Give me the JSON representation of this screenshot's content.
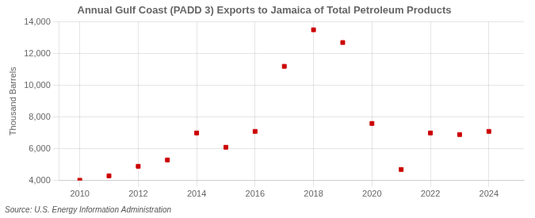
{
  "chart_data": {
    "type": "scatter",
    "title": "Annual Gulf Coast (PADD 3) Exports to Jamaica of Total Petroleum Products",
    "y_label": "Thousand Barrels",
    "annotations": [
      "Source: U.S. Energy Information Administration"
    ],
    "x": [
      2010,
      2011,
      2012,
      2013,
      2014,
      2015,
      2016,
      2017,
      2018,
      2019,
      2020,
      2021,
      2022,
      2023,
      2024
    ],
    "values": [
      4020,
      4300,
      4900,
      5300,
      7000,
      6100,
      7100,
      11200,
      13500,
      12700,
      7600,
      4700,
      7000,
      6900,
      7100
    ],
    "color": "#cc0000",
    "marker": "square",
    "xlim": [
      2009.3,
      2025.2
    ],
    "xticks": [
      2010,
      2012,
      2014,
      2016,
      2018,
      2020,
      2022,
      2024
    ],
    "ylim": [
      4000,
      14000
    ],
    "yticks": [
      {
        "value": 4000,
        "label": "4,000"
      },
      {
        "value": 6000,
        "label": "6,000"
      },
      {
        "value": 8000,
        "label": "8,000"
      },
      {
        "value": 10000,
        "label": "10,000"
      },
      {
        "value": 12000,
        "label": "12,000"
      },
      {
        "value": 14000,
        "label": "14,000"
      }
    ],
    "grid": true
  }
}
